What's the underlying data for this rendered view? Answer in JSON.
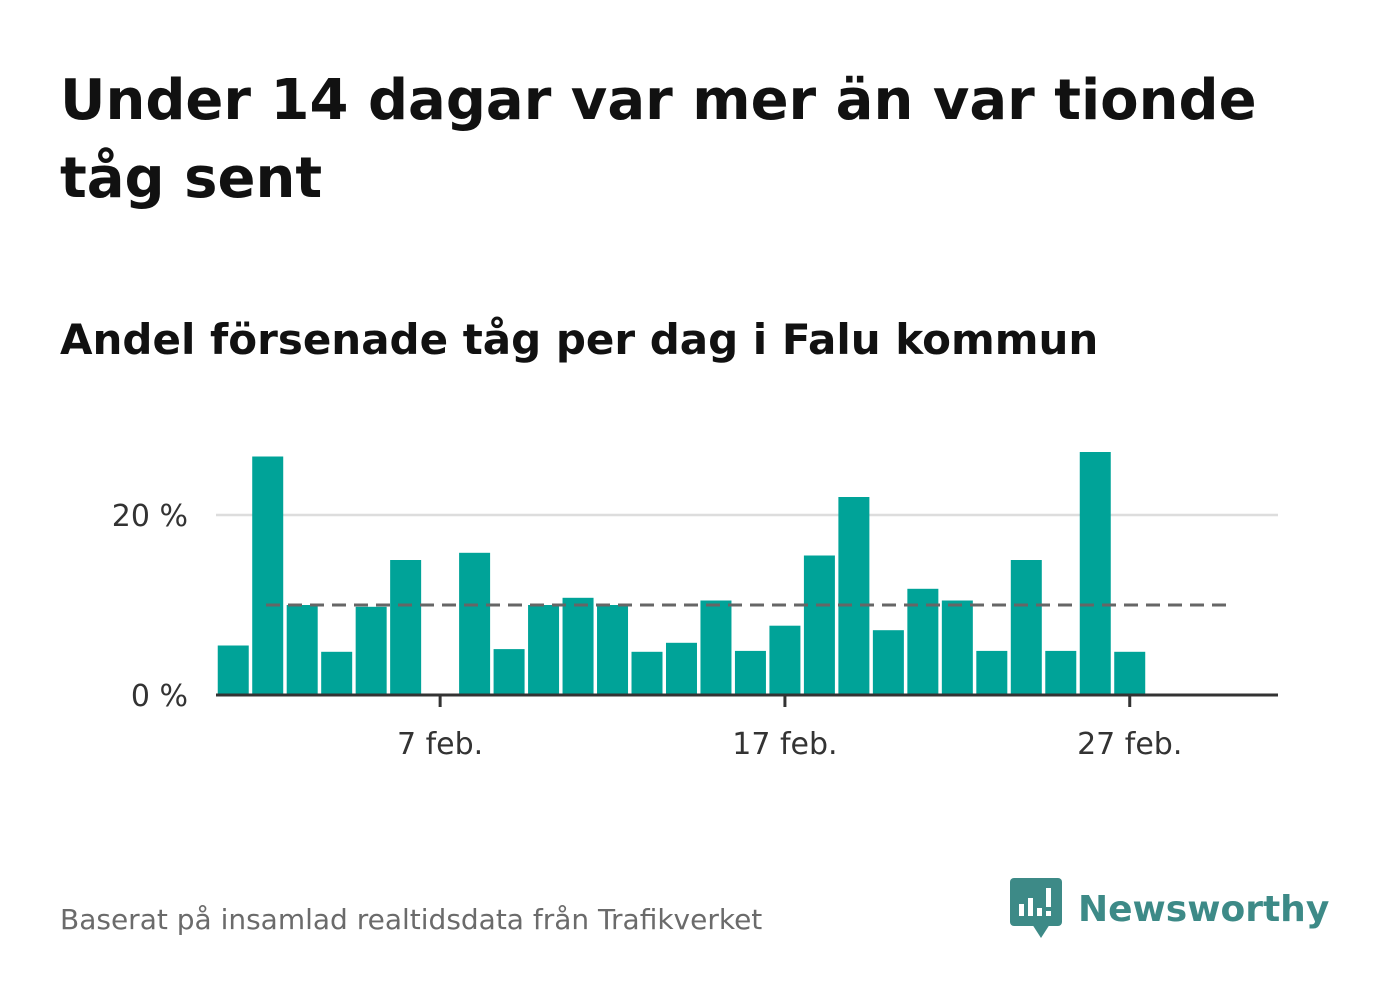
{
  "title": "Under 14 dagar var mer än var tionde tåg sent",
  "subtitle": "Andel försenade tåg per dag i Falu kommun",
  "footer": {
    "source": "Baserat på insamlad realtidsdata från Trafikverket"
  },
  "brand": {
    "name": "Newsworthy",
    "color": "#3d8a87"
  },
  "colors": {
    "bar": "#00a398",
    "reference_line": "#666666",
    "grid": "#dddddd",
    "axis": "#333333",
    "tick_text": "#333333"
  },
  "chart_data": {
    "type": "bar",
    "x_unit": "day of February",
    "x": [
      1,
      2,
      3,
      4,
      5,
      6,
      7,
      8,
      9,
      10,
      11,
      12,
      13,
      14,
      15,
      16,
      17,
      18,
      19,
      20,
      21,
      22,
      23,
      24,
      25,
      26,
      27,
      28
    ],
    "values": [
      5.5,
      26.5,
      10,
      4.8,
      9.8,
      15,
      0,
      15.8,
      5.1,
      10,
      10.8,
      10,
      4.8,
      5.8,
      10.5,
      4.9,
      7.7,
      15.5,
      22,
      7.2,
      11.8,
      10.5,
      4.9,
      15,
      4.9,
      27,
      4.8,
      null
    ],
    "reference_line": 10,
    "ylim": [
      0,
      30
    ],
    "yticks": [
      {
        "value": 0,
        "label": "0 %"
      },
      {
        "value": 20,
        "label": "20 %"
      }
    ],
    "xticks": [
      {
        "value": 7,
        "label": "7 feb."
      },
      {
        "value": 17,
        "label": "17 feb."
      },
      {
        "value": 27,
        "label": "27 feb."
      }
    ],
    "grid": true,
    "xlabel": "",
    "ylabel": ""
  }
}
